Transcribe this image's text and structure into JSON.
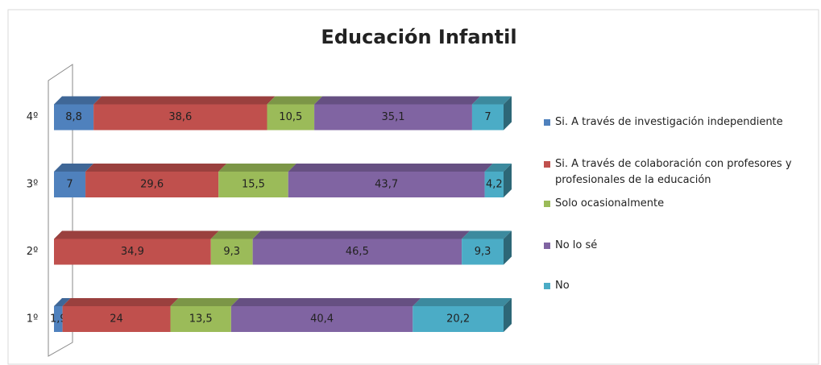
{
  "chart_data": {
    "type": "bar",
    "orientation": "horizontal",
    "stacked": true,
    "three_d": true,
    "title": "Educación Infantil",
    "categories": [
      "1º",
      "2º",
      "3º",
      "4º"
    ],
    "xlim": [
      0,
      100
    ],
    "legend": "right",
    "series": [
      {
        "name": "Si. A través de investigación independiente",
        "color": "#4f81bd",
        "values": [
          1.9,
          null,
          7,
          8.8
        ],
        "value_labels": [
          "1,9",
          null,
          "7",
          "8,8"
        ]
      },
      {
        "name": "Si. A través de colaboración con profesores y profesionales de la educación",
        "color": "#c0504d",
        "values": [
          24,
          34.9,
          29.6,
          38.6
        ],
        "value_labels": [
          "24",
          "34,9",
          "29,6",
          "38,6"
        ]
      },
      {
        "name": "Solo ocasionalmente",
        "color": "#9bbb59",
        "values": [
          13.5,
          9.3,
          15.5,
          10.5
        ],
        "value_labels": [
          "13,5",
          "9,3",
          "15,5",
          "10,5"
        ]
      },
      {
        "name": "No lo sé",
        "color": "#8064a2",
        "values": [
          40.4,
          46.5,
          43.7,
          35.1
        ],
        "value_labels": [
          "40,4",
          "46,5",
          "43,7",
          "35,1"
        ]
      },
      {
        "name": "No",
        "color": "#4bacc6",
        "values": [
          20.2,
          9.3,
          4.2,
          7
        ],
        "value_labels": [
          "20,2",
          "9,3",
          "4,2",
          "7"
        ]
      }
    ]
  }
}
